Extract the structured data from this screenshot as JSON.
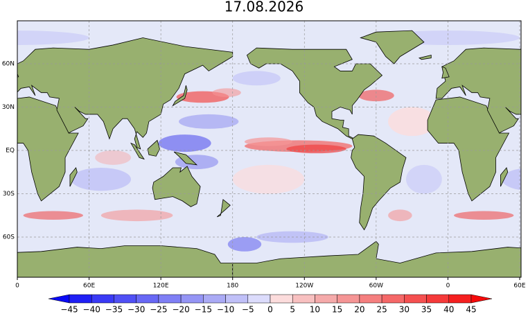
{
  "title": "17.08.2026",
  "map": {
    "lat_labels": [
      "60N",
      "30N",
      "EQ",
      "30S",
      "60S"
    ],
    "lon_labels": [
      "0",
      "60E",
      "120E",
      "180",
      "120W",
      "60W",
      "0",
      "60E"
    ]
  },
  "colorbar": {
    "labels": [
      "−45",
      "−40",
      "−35",
      "−30",
      "−25",
      "−20",
      "−15",
      "−10",
      "−5",
      "0",
      "5",
      "10",
      "15",
      "20",
      "25",
      "30",
      "35",
      "40",
      "45"
    ],
    "colors": [
      "#0a0af5",
      "#2020f5",
      "#3a3af5",
      "#5050f5",
      "#6868f5",
      "#7f7ff5",
      "#9595f5",
      "#aaaaf5",
      "#c0c0f8",
      "#dcdcfc",
      "#fcdcdc",
      "#f8c0c0",
      "#f5aaaa",
      "#f59595",
      "#f57f7f",
      "#f56868",
      "#f55050",
      "#f53a3a",
      "#f52020",
      "#f50a0a"
    ]
  }
}
